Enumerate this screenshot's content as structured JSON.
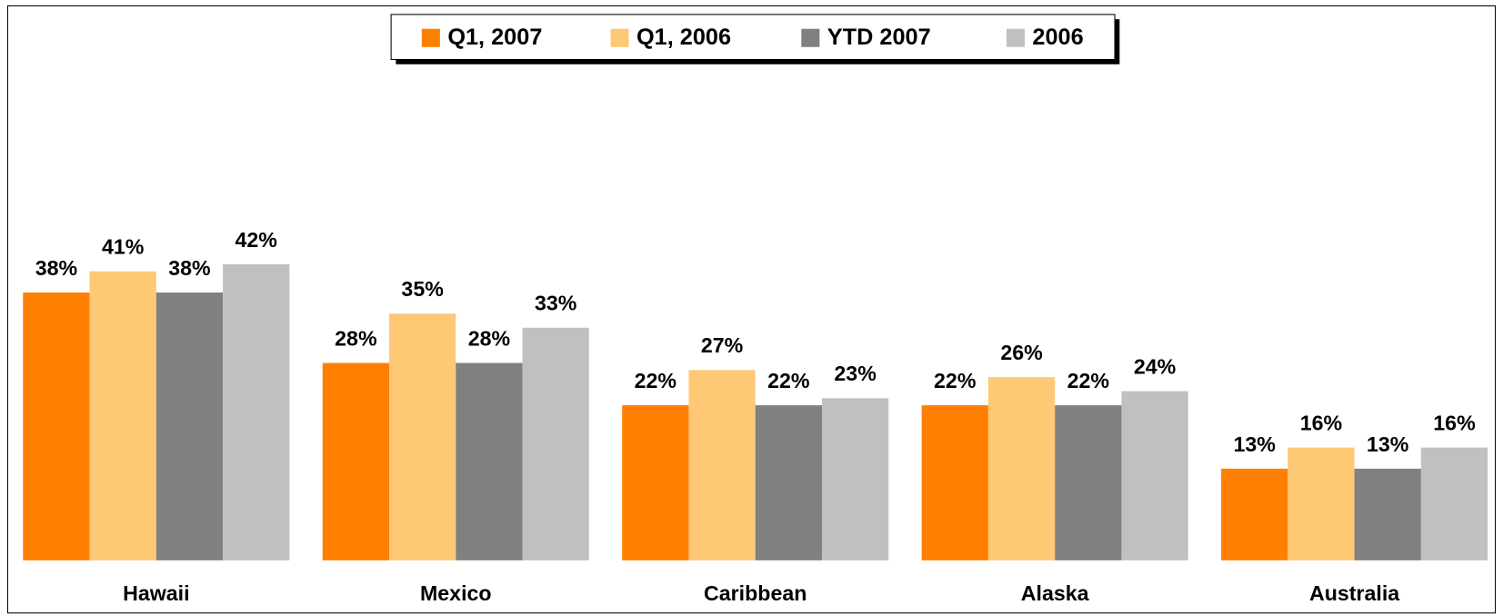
{
  "chart_data": {
    "type": "bar",
    "categories": [
      "Hawaii",
      "Mexico",
      "Caribbean",
      "Alaska",
      "Australia"
    ],
    "series": [
      {
        "name": "Q1, 2007",
        "color": "#ff7f00",
        "values": [
          38,
          28,
          22,
          22,
          13
        ],
        "value_labels": [
          "38%",
          "28%",
          "22%",
          "22%",
          "13%"
        ]
      },
      {
        "name": "Q1, 2006",
        "color": "#ffc875",
        "values": [
          41,
          35,
          27,
          26,
          16
        ],
        "value_labels": [
          "41%",
          "35%",
          "27%",
          "26%",
          "16%"
        ]
      },
      {
        "name": "YTD 2007",
        "color": "#808080",
        "values": [
          38,
          28,
          22,
          22,
          13
        ],
        "value_labels": [
          "38%",
          "28%",
          "22%",
          "22%",
          "13%"
        ]
      },
      {
        "name": "2006",
        "color": "#c0c0c0",
        "values": [
          42,
          33,
          23,
          24,
          16
        ],
        "value_labels": [
          "42%",
          "33%",
          "23%",
          "24%",
          "16%"
        ]
      }
    ],
    "legend": "top"
  }
}
